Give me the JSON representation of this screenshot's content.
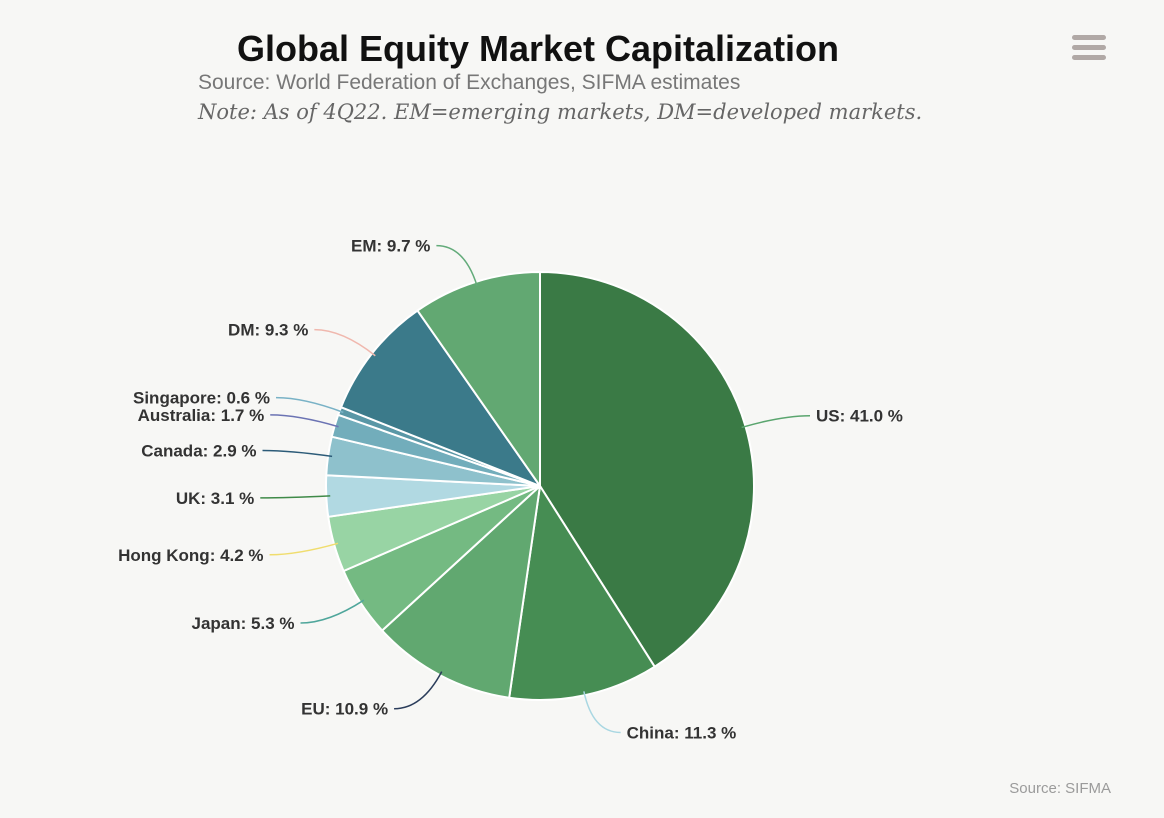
{
  "header": {
    "title": "Global Equity Market Capitalization",
    "subtitle": "Source: World Federation of Exchanges, SIFMA estimates",
    "note": "Note: As of 4Q22. EM=emerging markets, DM=developed markets."
  },
  "menu": {
    "icon": "hamburger-menu-icon"
  },
  "credit": "Source: SIFMA",
  "chart_data": {
    "type": "pie",
    "value_suffix": " %",
    "slices": [
      {
        "name": "US",
        "value": 41.0,
        "label": "US: 41.0 %",
        "color": "#3a7a45",
        "connector": "#5aa56e"
      },
      {
        "name": "China",
        "value": 11.3,
        "label": "China: 11.3 %",
        "color": "#468d53",
        "connector": "#a9d7e2"
      },
      {
        "name": "EU",
        "value": 10.9,
        "label": "EU: 10.9 %",
        "color": "#61a870",
        "connector": "#2b3d5b"
      },
      {
        "name": "Japan",
        "value": 5.3,
        "label": "Japan: 5.3 %",
        "color": "#74ba82",
        "connector": "#4fa69b"
      },
      {
        "name": "Hong Kong",
        "value": 4.2,
        "label": "Hong Kong: 4.2 %",
        "color": "#98d4a4",
        "connector": "#f0dd6e"
      },
      {
        "name": "UK",
        "value": 3.1,
        "label": "UK: 3.1 %",
        "color": "#b1d9e2",
        "connector": "#3f8a48"
      },
      {
        "name": "Canada",
        "value": 2.9,
        "label": "Canada: 2.9 %",
        "color": "#8ec1cc",
        "connector": "#2c5b78"
      },
      {
        "name": "Australia",
        "value": 1.7,
        "label": "Australia: 1.7 %",
        "color": "#72adbb",
        "connector": "#6b73b3"
      },
      {
        "name": "Singapore",
        "value": 0.6,
        "label": "Singapore: 0.6 %",
        "color": "#5a97a6",
        "connector": "#79b2c6"
      },
      {
        "name": "DM",
        "value": 9.3,
        "label": "DM: 9.3 %",
        "color": "#3b7a8a",
        "connector": "#f0b8ae"
      },
      {
        "name": "EM",
        "value": 9.7,
        "label": "EM: 9.7 %",
        "color": "#62a872",
        "connector": "#63ab7a"
      }
    ]
  }
}
